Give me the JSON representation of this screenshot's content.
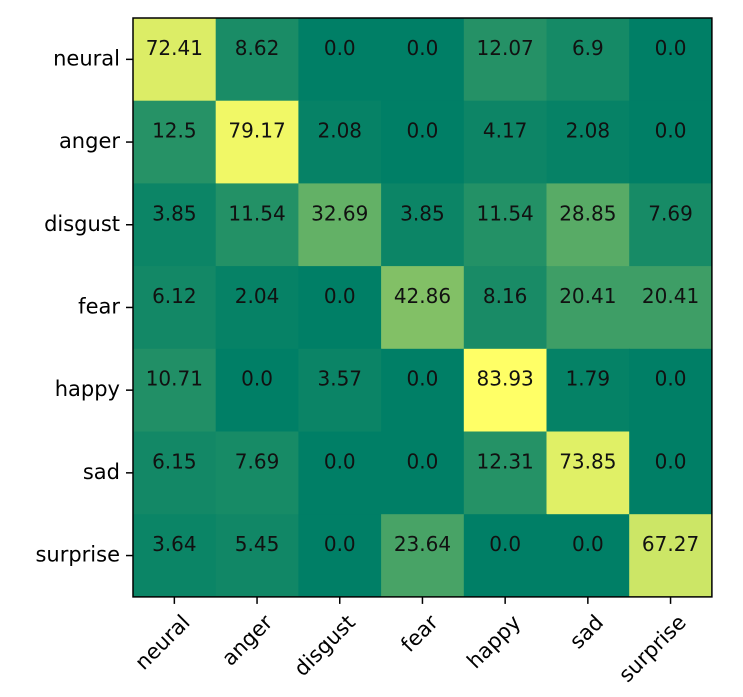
{
  "chart_data": {
    "type": "heatmap",
    "row_labels": [
      "neural",
      "anger",
      "disgust",
      "fear",
      "happy",
      "sad",
      "surprise"
    ],
    "col_labels": [
      "neural",
      "anger",
      "disgust",
      "fear",
      "happy",
      "sad",
      "surprise"
    ],
    "values": [
      [
        "72.41",
        "8.62",
        "0.0",
        "0.0",
        "12.07",
        "6.9",
        "0.0"
      ],
      [
        "12.5",
        "79.17",
        "2.08",
        "0.0",
        "4.17",
        "2.08",
        "0.0"
      ],
      [
        "3.85",
        "11.54",
        "32.69",
        "3.85",
        "11.54",
        "28.85",
        "7.69"
      ],
      [
        "6.12",
        "2.04",
        "0.0",
        "42.86",
        "8.16",
        "20.41",
        "20.41"
      ],
      [
        "10.71",
        "0.0",
        "3.57",
        "0.0",
        "83.93",
        "1.79",
        "0.0"
      ],
      [
        "6.15",
        "7.69",
        "0.0",
        "0.0",
        "12.31",
        "73.85",
        "0.0"
      ],
      [
        "3.64",
        "5.45",
        "0.0",
        "23.64",
        "0.0",
        "0.0",
        "67.27"
      ]
    ],
    "colormap": "summer",
    "value_range": [
      0,
      83.93
    ],
    "colormap_low": "#007f66",
    "colormap_high": "#ffff66",
    "x_tick_rotation_deg": -45,
    "title": "",
    "xlabel": "",
    "ylabel": "",
    "grid": false
  }
}
